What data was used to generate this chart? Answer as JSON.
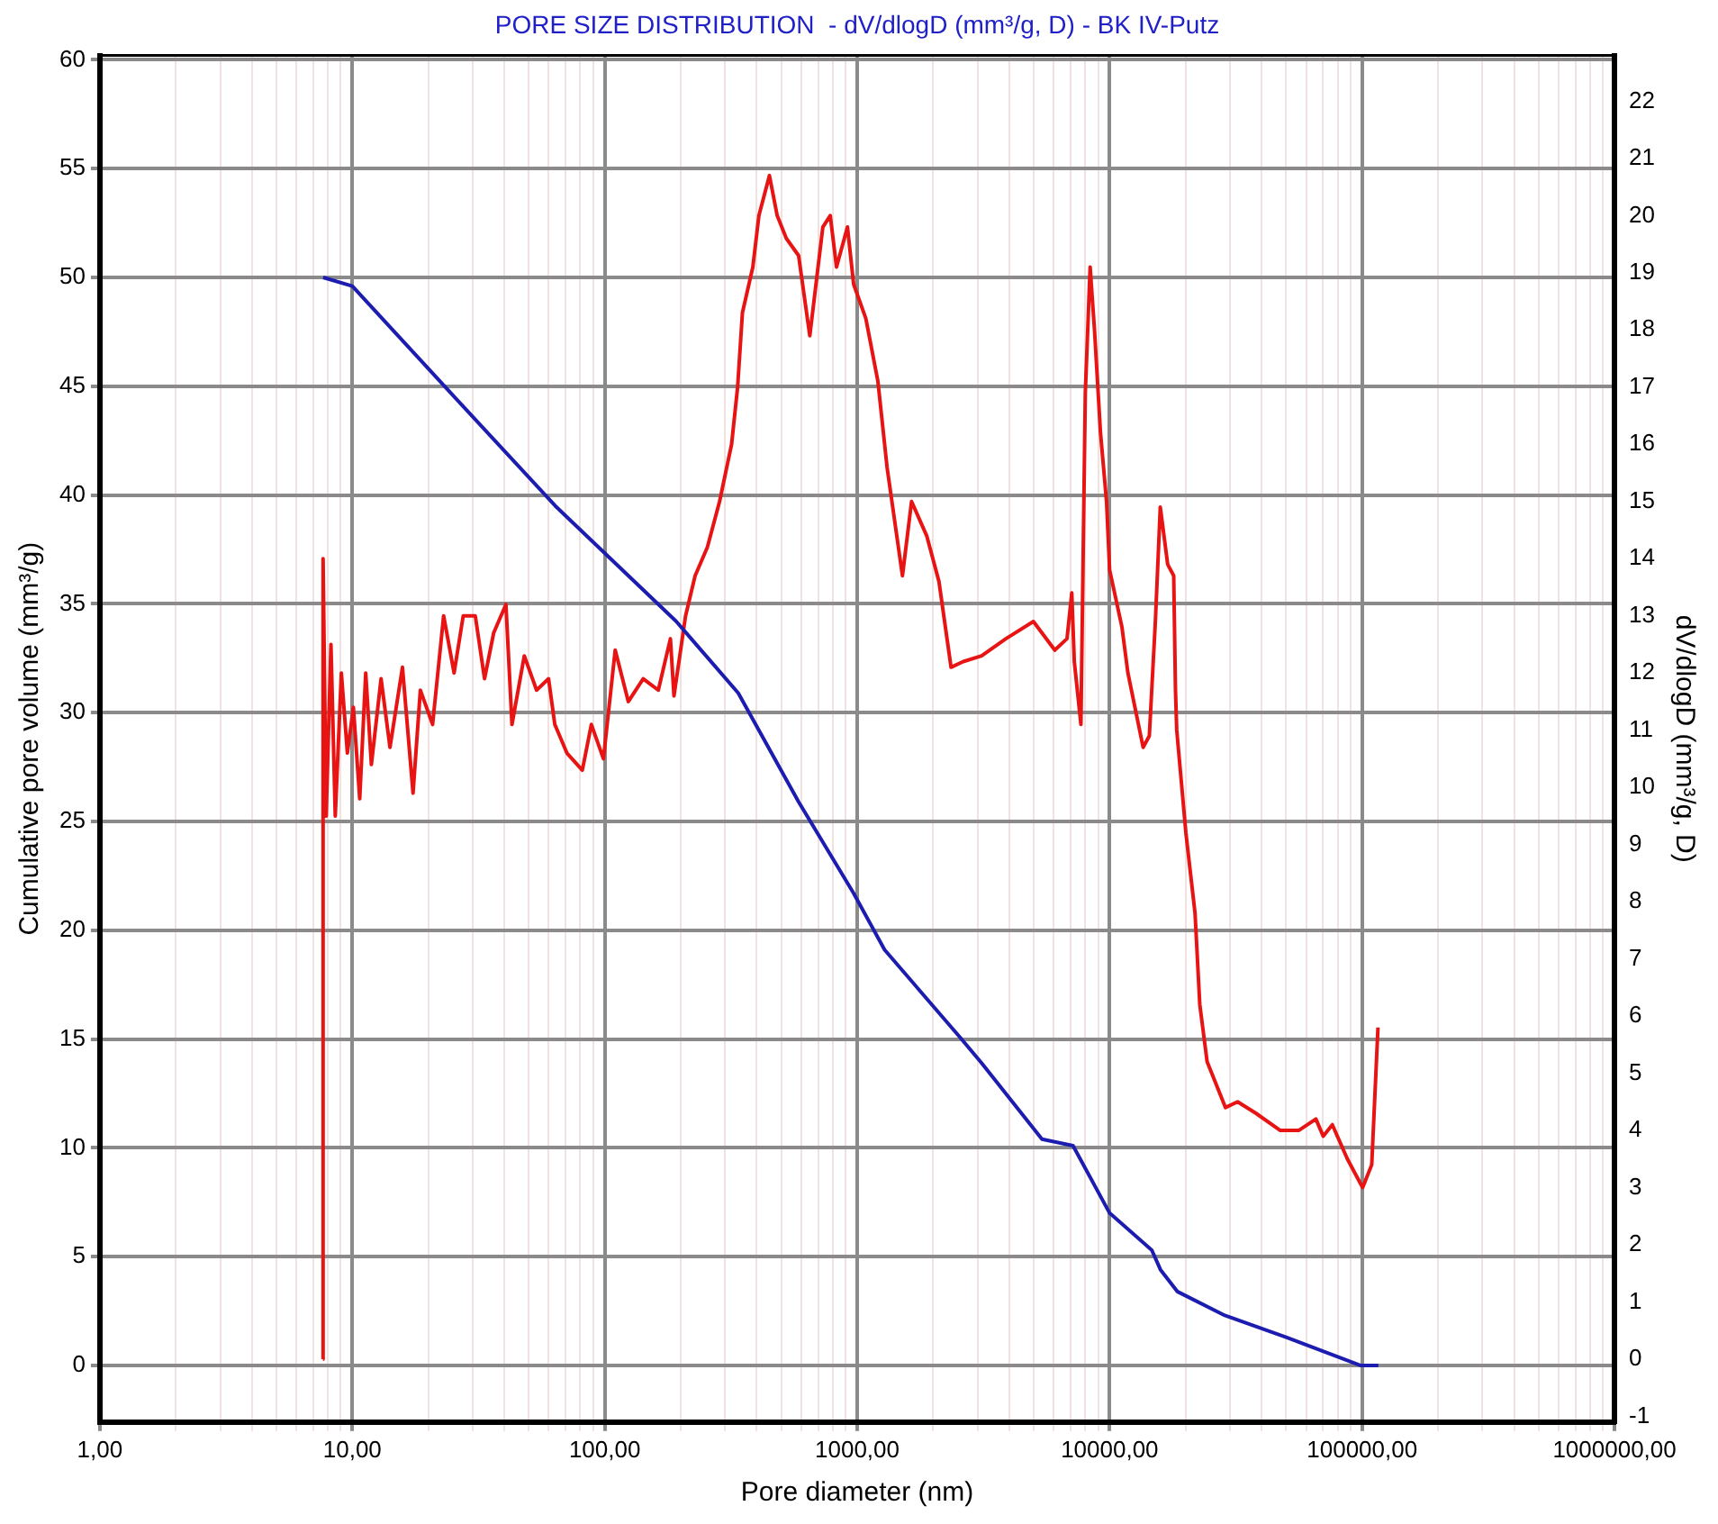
{
  "chart_data": {
    "type": "line",
    "title": "PORE SIZE DISTRIBUTION  - dV/dlogD (mm³/g, D) - BK IV-Putz",
    "xlabel": "Pore diameter (nm)",
    "ylabel": "Cumulative pore volume (mm³/g)",
    "y2label": "dV/dlogD (mm³/g, D)",
    "log": "x",
    "grid": true,
    "legend": false,
    "marker": "none",
    "line_style": "solid",
    "xlim": [
      1,
      1000000
    ],
    "xticks": [
      {
        "value": 1,
        "label": "1,00"
      },
      {
        "value": 2,
        "label": null
      },
      {
        "value": 3,
        "label": null
      },
      {
        "value": 4,
        "label": null
      },
      {
        "value": 5,
        "label": null
      },
      {
        "value": 6,
        "label": null
      },
      {
        "value": 7,
        "label": null
      },
      {
        "value": 8,
        "label": null
      },
      {
        "value": 9,
        "label": null
      },
      {
        "value": 10,
        "label": "10,00"
      },
      {
        "value": 20,
        "label": null
      },
      {
        "value": 30,
        "label": null
      },
      {
        "value": 40,
        "label": null
      },
      {
        "value": 50,
        "label": null
      },
      {
        "value": 60,
        "label": null
      },
      {
        "value": 70,
        "label": null
      },
      {
        "value": 80,
        "label": null
      },
      {
        "value": 90,
        "label": null
      },
      {
        "value": 100,
        "label": "100,00"
      },
      {
        "value": 200,
        "label": null
      },
      {
        "value": 300,
        "label": null
      },
      {
        "value": 400,
        "label": null
      },
      {
        "value": 500,
        "label": null
      },
      {
        "value": 600,
        "label": null
      },
      {
        "value": 700,
        "label": null
      },
      {
        "value": 800,
        "label": null
      },
      {
        "value": 900,
        "label": null
      },
      {
        "value": 1000,
        "label": "1000,00"
      },
      {
        "value": 2000,
        "label": null
      },
      {
        "value": 3000,
        "label": null
      },
      {
        "value": 4000,
        "label": null
      },
      {
        "value": 5000,
        "label": null
      },
      {
        "value": 6000,
        "label": null
      },
      {
        "value": 7000,
        "label": null
      },
      {
        "value": 8000,
        "label": null
      },
      {
        "value": 9000,
        "label": null
      },
      {
        "value": 10000,
        "label": "10000,00"
      },
      {
        "value": 20000,
        "label": null
      },
      {
        "value": 30000,
        "label": null
      },
      {
        "value": 40000,
        "label": null
      },
      {
        "value": 50000,
        "label": null
      },
      {
        "value": 60000,
        "label": null
      },
      {
        "value": 70000,
        "label": null
      },
      {
        "value": 80000,
        "label": null
      },
      {
        "value": 90000,
        "label": null
      },
      {
        "value": 100000,
        "label": "100000,00"
      },
      {
        "value": 200000,
        "label": null
      },
      {
        "value": 300000,
        "label": null
      },
      {
        "value": 400000,
        "label": null
      },
      {
        "value": 500000,
        "label": null
      },
      {
        "value": 600000,
        "label": null
      },
      {
        "value": 700000,
        "label": null
      },
      {
        "value": 800000,
        "label": null
      },
      {
        "value": 900000,
        "label": null
      },
      {
        "value": 1000000,
        "label": "1000000,00"
      }
    ],
    "ylim": [
      -2.6,
      60.2
    ],
    "yticks": [
      0,
      5,
      10,
      15,
      20,
      25,
      30,
      35,
      40,
      45,
      50,
      55,
      60
    ],
    "y2lim": [
      -1.1,
      22.8
    ],
    "y2ticks": [
      -1,
      0,
      1,
      2,
      3,
      4,
      5,
      6,
      7,
      8,
      9,
      10,
      11,
      12,
      13,
      14,
      15,
      16,
      17,
      18,
      19,
      20,
      21,
      22
    ],
    "series": [
      {
        "color": "#1c1cb0",
        "axis": "y",
        "x": [
          7.66,
          10,
          25.9,
          63.7,
          191.7,
          338,
          586,
          968,
          1284,
          2547,
          3111,
          5395,
          7160,
          10000,
          14690,
          15900,
          18530,
          28600,
          50000,
          98400,
          116000
        ],
        "values": [
          50.0,
          49.6,
          44.4,
          39.5,
          34.2,
          30.9,
          25.9,
          21.7,
          19.1,
          15.1,
          13.9,
          10.4,
          10.1,
          7.0,
          5.3,
          4.4,
          3.4,
          2.3,
          1.3,
          0,
          0
        ]
      },
      {
        "color": "#e81414",
        "axis": "y2",
        "x": [
          7.65,
          7.66,
          7.88,
          8.23,
          8.56,
          9.05,
          9.56,
          10.1,
          10.7,
          11.3,
          11.9,
          13.0,
          14.1,
          15.8,
          17.4,
          18.6,
          20.8,
          23.0,
          25.3,
          27.5,
          30.7,
          33.4,
          36.3,
          40.6,
          42.9,
          48.0,
          53.7,
          59.9,
          63.4,
          70.8,
          81.5,
          88.5,
          98.8,
          110,
          124,
          142,
          163,
          182,
          188,
          209,
          228,
          255,
          285,
          318,
          336,
          351,
          386,
          408,
          449,
          482,
          524,
          586,
          649,
          731,
          782,
          828,
          915,
          968,
          1082,
          1208,
          1313,
          1511,
          1642,
          1885,
          2108,
          2354,
          2631,
          3111,
          3882,
          4989,
          6063,
          6778,
          7080,
          7245,
          7695,
          8010,
          8370,
          8710,
          9200,
          9720,
          10000,
          11190,
          11815,
          13570,
          14360,
          15175,
          15870,
          16980,
          17940,
          18230,
          18440,
          20050,
          21790,
          22760,
          24330,
          28770,
          32130,
          37970,
          47440,
          56070,
          65620,
          70130,
          76240,
          87450,
          100500,
          109200,
          115600
        ],
        "values": [
          0,
          14.0,
          9.5,
          12.5,
          9.5,
          12.0,
          10.6,
          11.4,
          9.8,
          12.0,
          10.4,
          11.9,
          10.7,
          12.1,
          9.9,
          11.7,
          11.1,
          13.0,
          12.0,
          13.0,
          13.0,
          11.9,
          12.7,
          13.2,
          11.1,
          12.3,
          11.7,
          11.9,
          11.1,
          10.6,
          10.3,
          11.1,
          10.5,
          12.4,
          11.5,
          11.9,
          11.7,
          12.6,
          11.6,
          13.0,
          13.7,
          14.2,
          15.0,
          16.0,
          17.0,
          18.3,
          19.1,
          20.0,
          20.7,
          20.0,
          19.6,
          19.3,
          17.9,
          19.8,
          20.0,
          19.1,
          19.8,
          18.8,
          18.2,
          17.1,
          15.6,
          13.7,
          15.0,
          14.4,
          13.6,
          12.1,
          12.2,
          12.3,
          12.6,
          12.9,
          12.4,
          12.6,
          13.4,
          12.2,
          11.1,
          16.9,
          19.1,
          18.0,
          16.2,
          15.0,
          13.8,
          12.8,
          12.0,
          10.7,
          10.9,
          12.9,
          14.9,
          13.9,
          13.7,
          11.7,
          11.0,
          9.2,
          7.8,
          6.2,
          5.2,
          4.4,
          4.5,
          4.3,
          4.0,
          4.0,
          4.2,
          3.9,
          4.1,
          3.5,
          3.0,
          3.4,
          5.8
        ]
      }
    ]
  }
}
